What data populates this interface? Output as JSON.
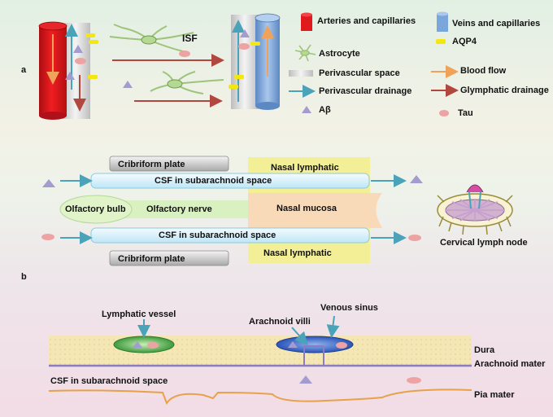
{
  "panels": {
    "a": "a",
    "b": "b"
  },
  "section_a": {
    "isf_label": "ISF",
    "legend": [
      {
        "id": "arteries",
        "label": "Arteries  and capillaries",
        "color": "#e0191e",
        "icon": "red-vessel-icon"
      },
      {
        "id": "veins",
        "label": "Veins and capillaries",
        "color": "#7aa6dc",
        "icon": "blue-vessel-icon"
      },
      {
        "id": "astrocyte",
        "label": "Astrocyte",
        "color": "#9ec37a",
        "icon": "astrocyte-icon"
      },
      {
        "id": "aqp4",
        "label": "AQP4",
        "color": "#f4e60f",
        "icon": "aqp4-icon"
      },
      {
        "id": "perivascular_space",
        "label": "Perivascular space",
        "color": "#cfcfcf",
        "icon": "gray-bar-icon"
      },
      {
        "id": "blood_flow",
        "label": "Blood flow",
        "color": "#f0a25a",
        "icon": "orange-arrow-icon"
      },
      {
        "id": "perivascular_drainage",
        "label": "Perivascular drainage",
        "color": "#4aa3b8",
        "icon": "teal-arrow-icon"
      },
      {
        "id": "glymphatic_drainage",
        "label": "Glymphatic drainage",
        "color": "#b2473e",
        "icon": "brown-arrow-icon"
      },
      {
        "id": "abeta",
        "label": "Aβ",
        "color": "#a49bd0",
        "icon": "triangle-icon"
      },
      {
        "id": "tau",
        "label": "Tau",
        "color": "#eda3a3",
        "icon": "tau-ellipse-icon"
      }
    ]
  },
  "section_b": {
    "cribriform_top": "Cribriform plate",
    "cribriform_bottom": "Cribriform plate",
    "nasal_lymphatic_top": "Nasal lymphatic",
    "nasal_lymphatic_bottom": "Nasal lymphatic",
    "csf_upper": "CSF in subarachnoid space",
    "csf_lower": "CSF in subarachnoid space",
    "olfactory_bulb": "Olfactory bulb",
    "olfactory_nerve": "Olfactory nerve",
    "nasal_mucosa": "Nasal mucosa",
    "cervical_lymph_node": "Cervical lymph node"
  },
  "section_c": {
    "lymphatic_vessel": "Lymphatic vessel",
    "venous_sinus": "Venous sinus",
    "arachnoid_villi": "Arachnoid villi",
    "dura": "Dura",
    "arachnoid_mater": "Arachnoid mater",
    "csf": "CSF in subarachnoid space",
    "pia_mater": "Pia mater"
  }
}
